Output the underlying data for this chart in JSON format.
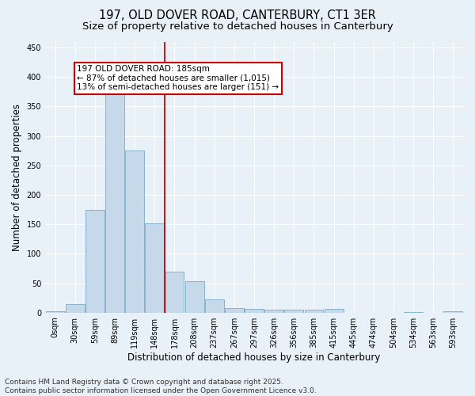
{
  "title_line1": "197, OLD DOVER ROAD, CANTERBURY, CT1 3ER",
  "title_line2": "Size of property relative to detached houses in Canterbury",
  "xlabel": "Distribution of detached houses by size in Canterbury",
  "ylabel": "Number of detached properties",
  "categories": [
    "0sqm",
    "30sqm",
    "59sqm",
    "89sqm",
    "119sqm",
    "148sqm",
    "178sqm",
    "208sqm",
    "237sqm",
    "267sqm",
    "297sqm",
    "326sqm",
    "356sqm",
    "385sqm",
    "415sqm",
    "445sqm",
    "474sqm",
    "504sqm",
    "534sqm",
    "563sqm",
    "593sqm"
  ],
  "values": [
    2,
    15,
    175,
    370,
    275,
    152,
    70,
    53,
    22,
    8,
    7,
    5,
    5,
    5,
    7,
    0,
    0,
    0,
    1,
    0,
    2
  ],
  "bar_color": "#c5d9ea",
  "bar_edge_color": "#7aaac8",
  "vline_color": "#cc0000",
  "annotation_text": "197 OLD DOVER ROAD: 185sqm\n← 87% of detached houses are smaller (1,015)\n13% of semi-detached houses are larger (151) →",
  "annotation_box_edge_color": "#cc0000",
  "ylim": [
    0,
    460
  ],
  "yticks": [
    0,
    50,
    100,
    150,
    200,
    250,
    300,
    350,
    400,
    450
  ],
  "background_color": "#e8f0f8",
  "grid_color": "#ffffff",
  "footer_line1": "Contains HM Land Registry data © Crown copyright and database right 2025.",
  "footer_line2": "Contains public sector information licensed under the Open Government Licence v3.0.",
  "title_fontsize": 10.5,
  "subtitle_fontsize": 9.5,
  "axis_label_fontsize": 8.5,
  "tick_fontsize": 7,
  "annotation_fontsize": 7.5,
  "footer_fontsize": 6.5,
  "vline_index": 6
}
